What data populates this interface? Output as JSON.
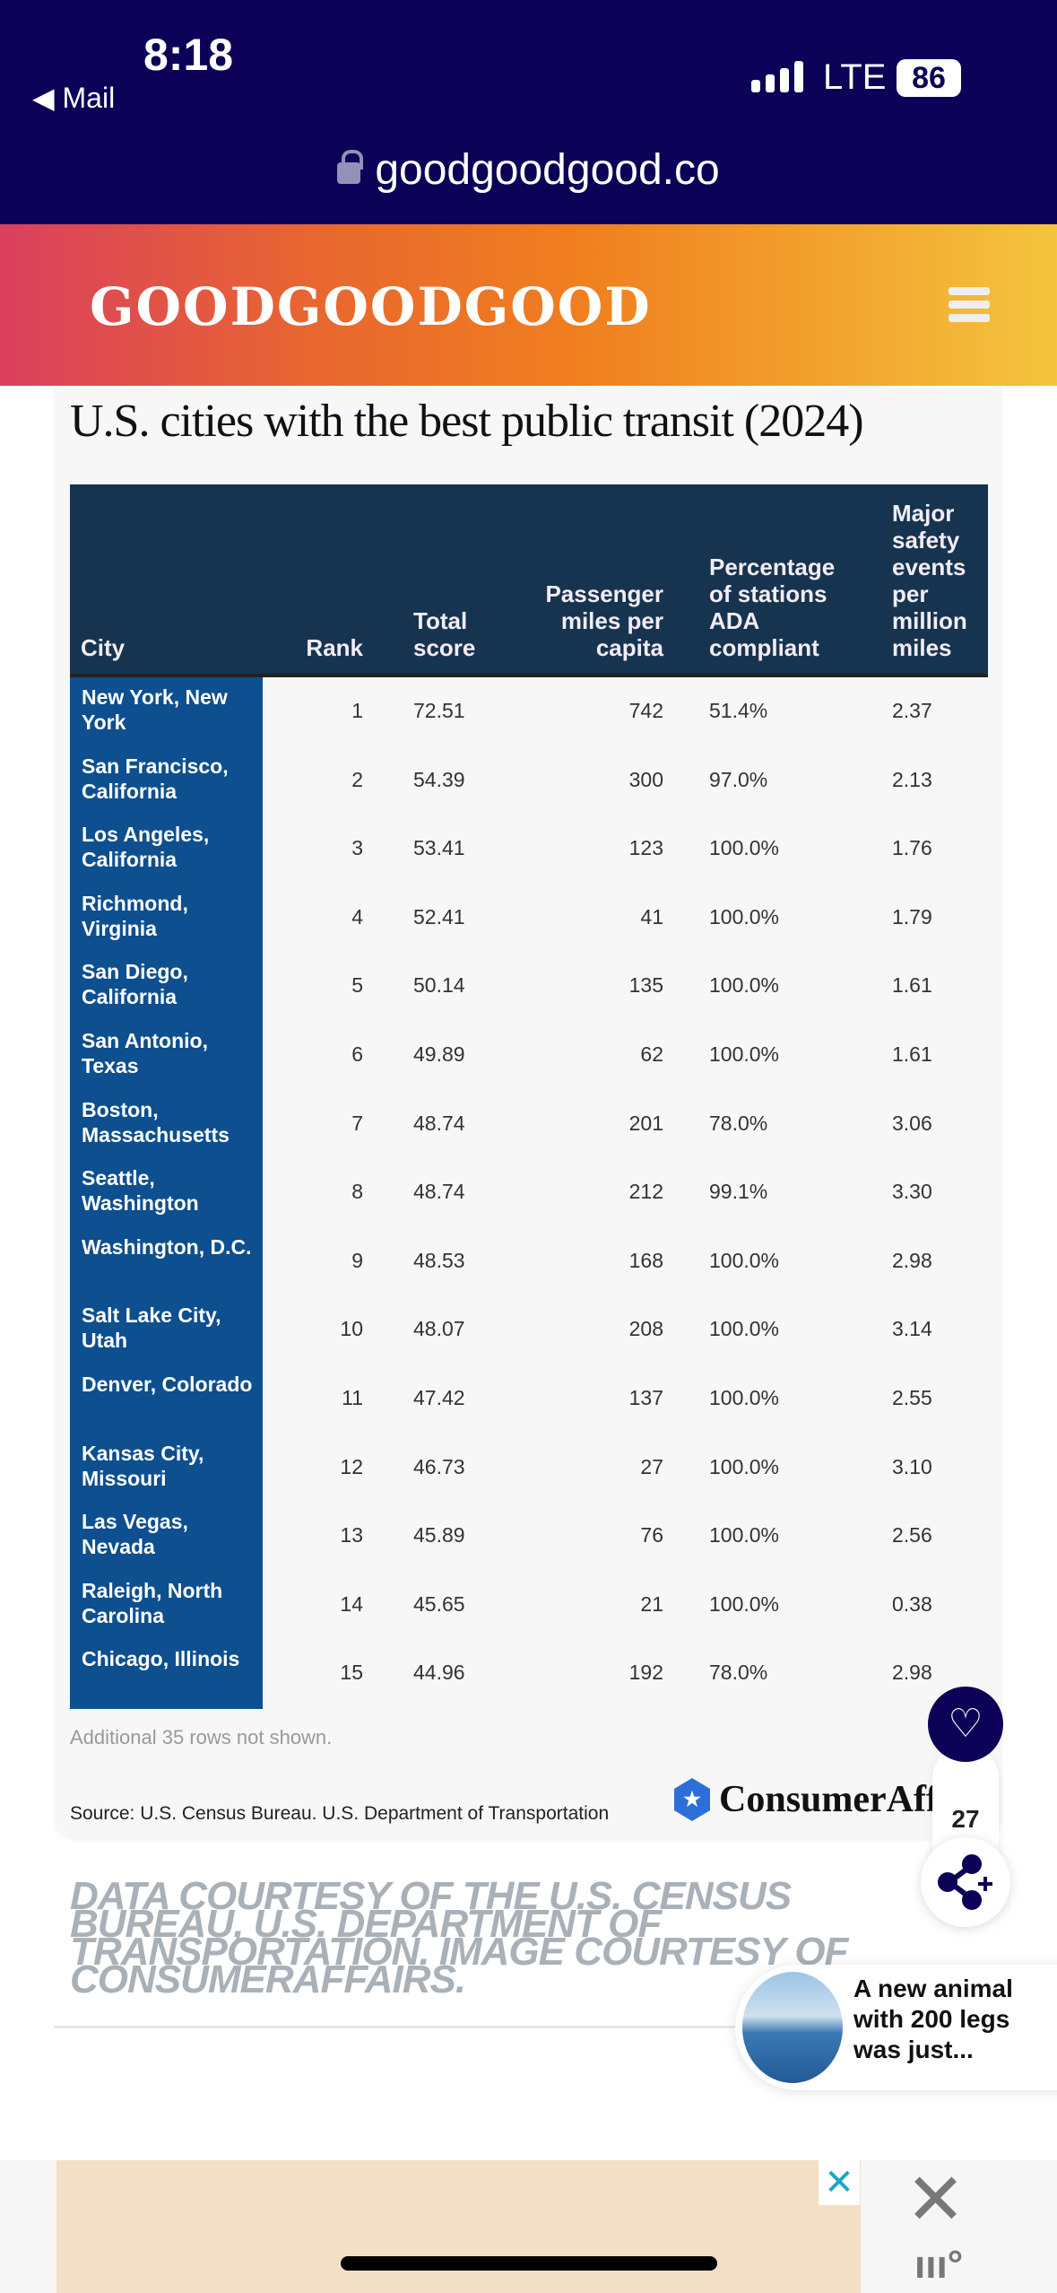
{
  "status_bar": {
    "time": "8:18",
    "back_label": "Mail",
    "network": "LTE",
    "battery": "86"
  },
  "browser": {
    "url": "goodgoodgood.co"
  },
  "site": {
    "logo": "GOODGOODGOOD"
  },
  "card": {
    "title": "U.S. cities with the best public transit (2024)",
    "columns": [
      "City",
      "Rank",
      "Total score",
      "Passenger miles per capita",
      "Percentage of stations ADA compliant",
      "Major safety events per million miles"
    ],
    "rows": [
      [
        "New York, New York",
        "1",
        "72.51",
        "742",
        "51.4%",
        "2.37"
      ],
      [
        "San Francisco, California",
        "2",
        "54.39",
        "300",
        "97.0%",
        "2.13"
      ],
      [
        "Los Angeles, California",
        "3",
        "53.41",
        "123",
        "100.0%",
        "1.76"
      ],
      [
        "Richmond, Virginia",
        "4",
        "52.41",
        "41",
        "100.0%",
        "1.79"
      ],
      [
        "San Diego, California",
        "5",
        "50.14",
        "135",
        "100.0%",
        "1.61"
      ],
      [
        "San Antonio, Texas",
        "6",
        "49.89",
        "62",
        "100.0%",
        "1.61"
      ],
      [
        "Boston, Massachusetts",
        "7",
        "48.74",
        "201",
        "78.0%",
        "3.06"
      ],
      [
        "Seattle, Washington",
        "8",
        "48.74",
        "212",
        "99.1%",
        "3.30"
      ],
      [
        "Washington, D.C.",
        "9",
        "48.53",
        "168",
        "100.0%",
        "2.98"
      ],
      [
        "Salt Lake City, Utah",
        "10",
        "48.07",
        "208",
        "100.0%",
        "3.14"
      ],
      [
        "Denver, Colorado",
        "11",
        "47.42",
        "137",
        "100.0%",
        "2.55"
      ],
      [
        "Kansas City, Missouri",
        "12",
        "46.73",
        "27",
        "100.0%",
        "3.10"
      ],
      [
        "Las Vegas, Nevada",
        "13",
        "45.89",
        "76",
        "100.0%",
        "2.56"
      ],
      [
        "Raleigh, North Carolina",
        "14",
        "45.65",
        "21",
        "100.0%",
        "0.38"
      ],
      [
        "Chicago, Illinois",
        "15",
        "44.96",
        "192",
        "78.0%",
        "2.98"
      ]
    ],
    "more_rows": "Additional 35 rows not shown.",
    "source": "Source: U.S. Census Bureau. U.S. Department of Transportation",
    "brand": "ConsumerAff"
  },
  "caption": "DATA COURTESY OF THE U.S. CENSUS BUREAU, U.S. DEPARTMENT OF TRANSPORTATION. IMAGE COURTESY OF CONSUMERAFFAIRS.",
  "actions": {
    "like_count": "27",
    "heart_icon": "heart-icon",
    "share_icon": "share-plus-icon"
  },
  "recommendation": {
    "text": "A new animal with 200 legs was just..."
  },
  "colors": {
    "status_bg": "#0c0057",
    "table_header": "#16344f",
    "city_column": "#0d4f8f",
    "caption": "#a9b0b8",
    "ad_bg": "#f3dfc6"
  }
}
